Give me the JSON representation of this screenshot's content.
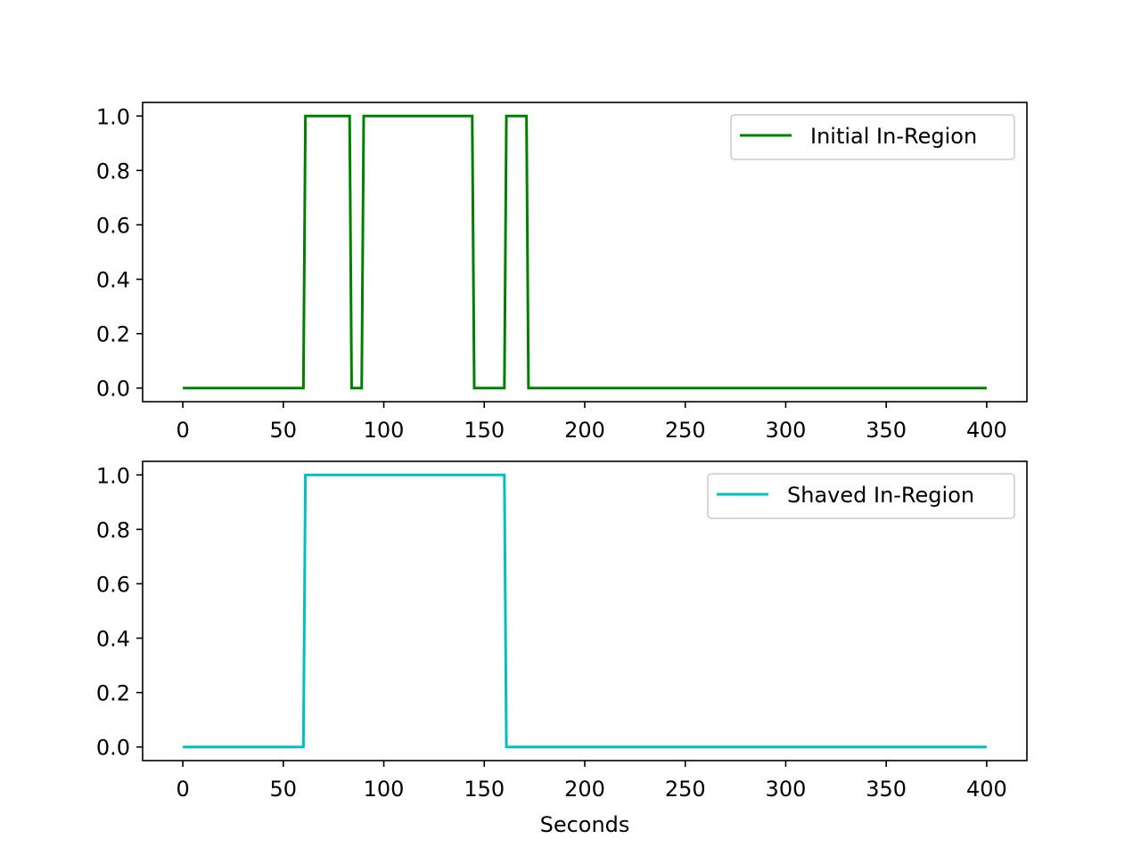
{
  "chart_data": [
    {
      "type": "line",
      "title": "",
      "xlabel": "",
      "ylabel": "",
      "xlim": [
        -20,
        420
      ],
      "ylim": [
        -0.05,
        1.05
      ],
      "xticks": [
        0,
        50,
        100,
        150,
        200,
        250,
        300,
        350,
        400
      ],
      "yticks": [
        0.0,
        0.2,
        0.4,
        0.6,
        0.8,
        1.0
      ],
      "xtick_labels": [
        "0",
        "50",
        "100",
        "150",
        "200",
        "250",
        "300",
        "350",
        "400"
      ],
      "ytick_labels": [
        "0.0",
        "0.2",
        "0.4",
        "0.6",
        "0.8",
        "1.0"
      ],
      "grid": false,
      "legend_position": "top-right",
      "series": [
        {
          "name": "Initial In-Region",
          "color": "#008000",
          "x": [
            0,
            60,
            61,
            83,
            84,
            89,
            90,
            144,
            145,
            160,
            161,
            171,
            172,
            400
          ],
          "y": [
            0,
            0,
            1,
            1,
            0,
            0,
            1,
            1,
            0,
            0,
            1,
            1,
            0,
            0
          ]
        }
      ]
    },
    {
      "type": "line",
      "title": "",
      "xlabel": "Seconds",
      "ylabel": "",
      "xlim": [
        -20,
        420
      ],
      "ylim": [
        -0.05,
        1.05
      ],
      "xticks": [
        0,
        50,
        100,
        150,
        200,
        250,
        300,
        350,
        400
      ],
      "yticks": [
        0.0,
        0.2,
        0.4,
        0.6,
        0.8,
        1.0
      ],
      "xtick_labels": [
        "0",
        "50",
        "100",
        "150",
        "200",
        "250",
        "300",
        "350",
        "400"
      ],
      "ytick_labels": [
        "0.0",
        "0.2",
        "0.4",
        "0.6",
        "0.8",
        "1.0"
      ],
      "grid": false,
      "legend_position": "top-right",
      "series": [
        {
          "name": "Shaved In-Region",
          "color": "#00bfbf",
          "x": [
            0,
            60,
            61,
            160,
            161,
            400
          ],
          "y": [
            0,
            0,
            1,
            1,
            0,
            0
          ]
        }
      ]
    }
  ]
}
